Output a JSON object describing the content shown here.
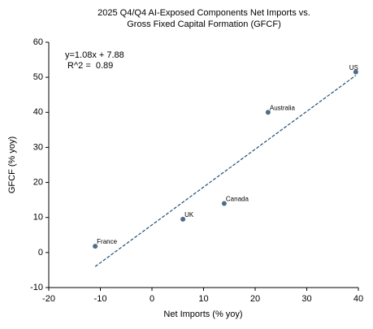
{
  "chart_data": {
    "type": "scatter",
    "title": [
      "2025 Q4/Q4 AI-Exposed Components Net Imports vs.",
      "Gross Fixed Capital Formation (GFCF)"
    ],
    "xlabel": "Net Imports (% yoy)",
    "ylabel": "GFCF (% yoy)",
    "annotation": [
      "y=1.08x + 7.88",
      " R^2 =  0.89"
    ],
    "point_labels": [
      "France",
      "UK",
      "Canada",
      "Australia",
      "US"
    ],
    "x": [
      -11,
      6,
      14,
      22.5,
      39.5
    ],
    "values": [
      1.8,
      9.5,
      14,
      40,
      51.5
    ],
    "color": "#4f6d8a",
    "trendline": {
      "slope": 1.08,
      "intercept": 7.88,
      "color": "#1f4e79"
    },
    "xlim": [
      -20,
      40
    ],
    "xticks": [
      -20,
      -10,
      0,
      10,
      20,
      30,
      40
    ],
    "ylim": [
      -10,
      60
    ],
    "yticks": [
      -10,
      0,
      10,
      20,
      30,
      40,
      50,
      60
    ],
    "grid": false
  }
}
